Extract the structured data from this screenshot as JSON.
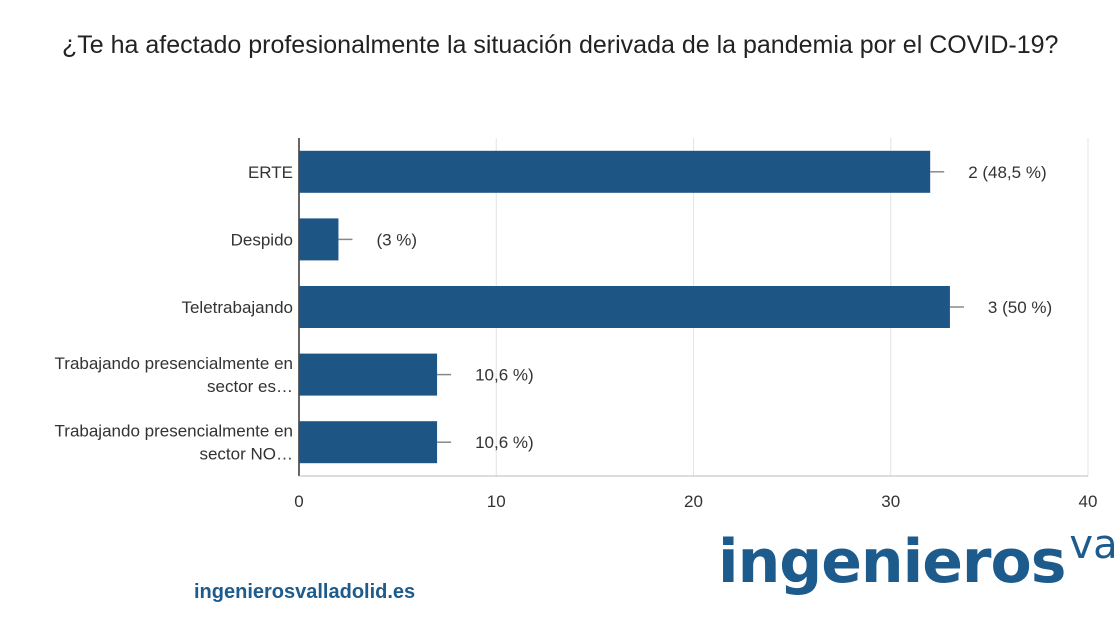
{
  "question": "¿Te ha afectado profesionalmente la situación derivada de la pandemia por el COVID-19?",
  "footer": {
    "website": "ingenierosvalladolid.es",
    "brand": "ingenieros",
    "brand_superscript": "va"
  },
  "colors": {
    "bar": "#1d5585",
    "brand": "#1d5b8c"
  },
  "chart_data": {
    "type": "bar",
    "orientation": "horizontal",
    "categories": [
      "ERTE",
      "Despido",
      "Teletrabajando",
      "Trabajando presencialmente en sector es…",
      "Trabajando presencialmente en sector NO…"
    ],
    "values": [
      32,
      2,
      33,
      7,
      7
    ],
    "data_labels": [
      "2 (48,5 %)",
      "(3 %)",
      "3 (50 %)",
      "10,6 %)",
      "10,6 %)"
    ],
    "xlim": [
      0,
      40
    ],
    "xticks": [
      "0",
      "10",
      "20",
      "30",
      "40"
    ],
    "grid": true,
    "legend": "none"
  }
}
